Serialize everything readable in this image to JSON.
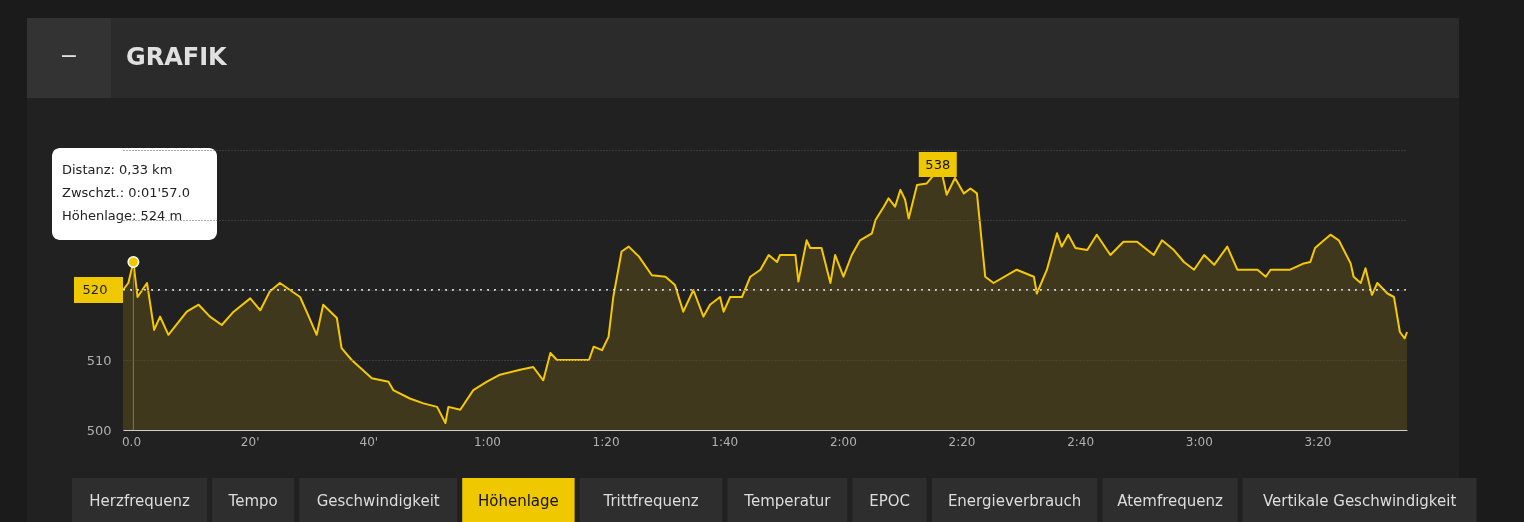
{
  "chart_data": {
    "type": "area",
    "title": "GRAFIK",
    "x": [
      -1.35,
      -0.45,
      0.4,
      1.1,
      2.7,
      3.9,
      4.9,
      6.3,
      9.4,
      11.4,
      13.3,
      15.3,
      17.3,
      20.1,
      21.8,
      23.4,
      25.1,
      26.8,
      28.5,
      29.6,
      31.3,
      32.4,
      34.7,
      35.5,
      37.2,
      40.6,
      43.4,
      44.2,
      47.0,
      49.3,
      51.6,
      53.0,
      53.5,
      55.5,
      57.7,
      60.0,
      62.2,
      65.6,
      67.8,
      69.5,
      70.7,
      71.8,
      77.2,
      78.0,
      79.4,
      80.5,
      81.3,
      82.7,
      83.9,
      85.6,
      87.8,
      90.1,
      91.7,
      93.1,
      94.8,
      96.5,
      97.6,
      99.3,
      99.9,
      101.0,
      103.0,
      104.4,
      106.1,
      107.5,
      108.9,
      109.4,
      112.0,
      112.5,
      113.9,
      114.5,
      116.4,
      117.9,
      118.7,
      120.1,
      121.5,
      122.9,
      124.9,
      125.5,
      126.9,
      127.7,
      128.8,
      129.7,
      130.5,
      131.1,
      132.5,
      134.1,
      135.3,
      136.0,
      136.7,
      137.5,
      138.9,
      140.4,
      141.5,
      142.6,
      144.0,
      145.4,
      149.3,
      152.2,
      152.7,
      154.4,
      156.1,
      156.9,
      158.0,
      159.2,
      161.2,
      162.8,
      165.1,
      167.3,
      169.6,
      172.4,
      173.8,
      175.8,
      177.5,
      179.2,
      180.9,
      182.6,
      184.8,
      186.5,
      189.9,
      191.3,
      192.1,
      195.4,
      197.7,
      198.8,
      199.6,
      200.8,
      202.2,
      203.6,
      205.6,
      206.1,
      207.3,
      208.1,
      209.2,
      210.1,
      211.8,
      212.9,
      213.9,
      214.7,
      215.1
    ],
    "series": [
      {
        "type": "scatter",
        "x": [
          0.4
        ],
        "values": [
          524
        ],
        "color": "#f0c800",
        "marker": "circle"
      },
      {
        "color": "#f5c800",
        "values": [
          520,
          521,
          524,
          519,
          521,
          514.3,
          516.2,
          513.6,
          516.9,
          517.9,
          516.2,
          515,
          516.9,
          518.8,
          517.1,
          519.8,
          521,
          520,
          519,
          516.9,
          513.6,
          517.9,
          516,
          511.7,
          510,
          507.4,
          506.9,
          505.7,
          504.5,
          503.8,
          503.3,
          501,
          503.3,
          502.9,
          505.7,
          506.9,
          507.9,
          508.6,
          509,
          507.1,
          511,
          510,
          510,
          511.9,
          511.4,
          513.3,
          519,
          525.5,
          526.2,
          524.8,
          522.1,
          521.9,
          520.7,
          516.9,
          520,
          516.2,
          517.9,
          519,
          516.9,
          519,
          519,
          521.9,
          522.9,
          525,
          524,
          525,
          525,
          521.2,
          527.1,
          526,
          526,
          521,
          525,
          521.9,
          525,
          527.1,
          528.1,
          530,
          531.9,
          533.1,
          531.9,
          534.3,
          532.9,
          530.2,
          535,
          535.2,
          536.4,
          538,
          536.7,
          533.6,
          536,
          533.8,
          534.5,
          533.8,
          521.9,
          521,
          522.9,
          521.9,
          519.5,
          522.9,
          528.1,
          526.2,
          527.9,
          526,
          525.7,
          527.9,
          525,
          526.9,
          526.9,
          525,
          527.1,
          525.7,
          524,
          522.9,
          525,
          523.6,
          526.2,
          522.9,
          522.9,
          521.9,
          522.9,
          522.9,
          523.8,
          524,
          526,
          526.9,
          527.9,
          527.1,
          523.8,
          521.9,
          521,
          523.1,
          519.3,
          521,
          519.5,
          519,
          514,
          513.1,
          514
        ]
      }
    ],
    "xlim": [
      -1.35,
      215.1
    ],
    "xticks": [
      {
        "value": 0,
        "label": "0.0"
      },
      {
        "value": 20,
        "label": "20'"
      },
      {
        "value": 40,
        "label": "40'"
      },
      {
        "value": 60,
        "label": "1:00"
      },
      {
        "value": 80,
        "label": "1:20"
      },
      {
        "value": 100,
        "label": "1:40"
      },
      {
        "value": 120,
        "label": "2:00"
      },
      {
        "value": 140,
        "label": "2:20"
      },
      {
        "value": 160,
        "label": "2:40"
      },
      {
        "value": 180,
        "label": "3:00"
      },
      {
        "value": 200,
        "label": "3:20"
      }
    ],
    "ylim": [
      500,
      540
    ],
    "yticks": [
      500,
      510,
      {
        "value": 520,
        "label": null
      },
      {
        "value": 530,
        "label": null
      },
      {
        "value": 540,
        "label": null
      }
    ],
    "grid": "y",
    "ref_lines": [
      {
        "axis": "y",
        "value": 520,
        "label": "520",
        "color": "#ffffff",
        "line_style": "dotted"
      }
    ],
    "annotations": [
      "Distanz: 0,33 km\nZwschzt.: 0:01'57.0\nHöhenlage: 524 m",
      {
        "text": "538",
        "x": 136.0,
        "y": 538
      },
      "−",
      "Herzfrequenz",
      "Tempo",
      "Geschwindigkeit",
      "Höhenlage",
      "Trittfrequenz",
      "Temperatur",
      "EPOC",
      "Energieverbrauch",
      "Atemfrequenz",
      "Vertikale Geschwindigkeit"
    ]
  }
}
